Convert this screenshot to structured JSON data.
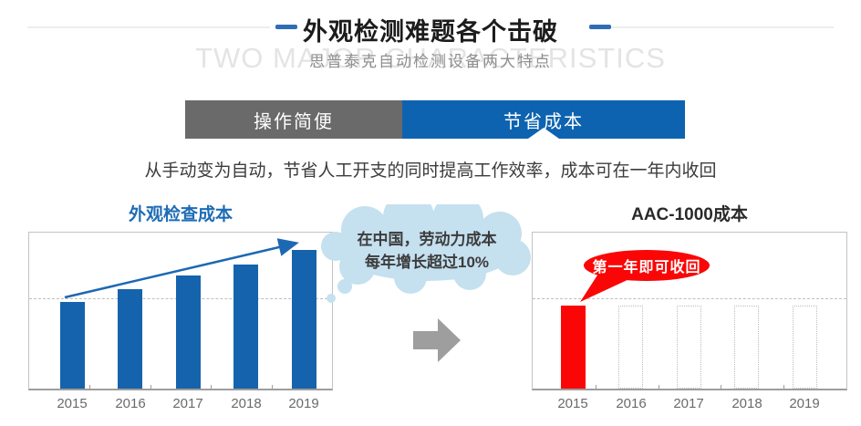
{
  "header": {
    "title": "外观检测难题各个击破",
    "subtitle_cn": "思普泰克自动检测设备两大特点",
    "subtitle_en": "TWO MAJOR CHARACTERISTICS"
  },
  "tabs": [
    {
      "label": "操作简便",
      "active": false
    },
    {
      "label": "节省成本",
      "active": true
    }
  ],
  "description": "从手动变为自动，节省人工开支的同时提高工作效率，成本可在一年内收回",
  "annotations": {
    "cloud_line1": "在中国，劳动力成本",
    "cloud_line2": "每年增长超过10%",
    "bubble_label": "第一年即可收回"
  },
  "colors": {
    "accent_blue": "#0e63b0",
    "bar_blue": "#1663ad",
    "tab_gray": "#6a6a6a",
    "alert_red": "#fb0606",
    "cloud_blue": "#c5e0ef",
    "faded_caps_gray": "#e4e4e4"
  },
  "chart_data": [
    {
      "id": "inspection-cost",
      "type": "bar",
      "title": "外观检查成本",
      "categories": [
        "2015",
        "2016",
        "2017",
        "2018",
        "2019"
      ],
      "values": [
        100,
        115,
        130,
        143,
        160
      ],
      "ylim": [
        0,
        180
      ],
      "ylabel": "",
      "xlabel": "",
      "unit": "relative cost (y-axis unlabeled, estimated)",
      "bar_color": "#1663ad",
      "gridline_value": 104,
      "grid": "single dashed horizontal line",
      "annotation": "blue upward trend arrow from 2015 bar top to 2019 bar top"
    },
    {
      "id": "aac1000-cost",
      "type": "bar",
      "title": "AAC-1000成本",
      "categories": [
        "2015",
        "2016",
        "2017",
        "2018",
        "2019"
      ],
      "values": [
        96,
        null,
        null,
        null,
        null
      ],
      "placeholder_value": 96,
      "ylim": [
        0,
        180
      ],
      "ylabel": "",
      "xlabel": "",
      "unit": "relative cost (y-axis unlabeled, estimated)",
      "bar_color": "#fb0606",
      "gridline_value": 104,
      "grid": "single dashed horizontal line",
      "annotation": "2016–2019 drawn as empty dotted-outline bars; red speech bubble points at 2015 bar"
    }
  ]
}
